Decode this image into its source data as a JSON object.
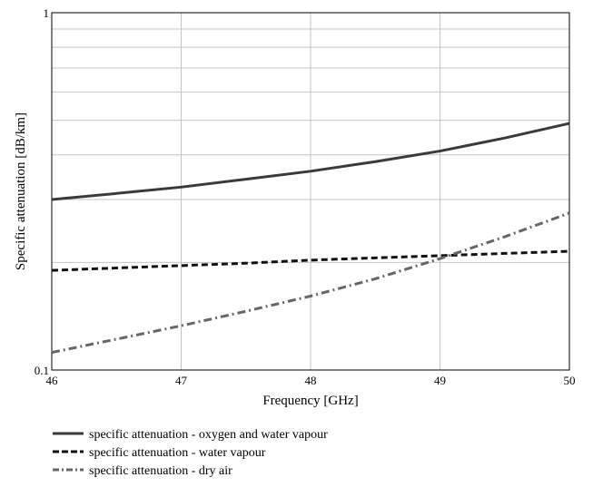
{
  "chart_data": {
    "type": "line",
    "xlabel": "Frequency [GHz]",
    "ylabel": "Specific attenuation [dB/km]",
    "xlim": [
      46,
      50
    ],
    "ylim": [
      0.1,
      1
    ],
    "y_scale": "log",
    "grid": true,
    "legend_position": "bottom-left",
    "x_ticks": [
      "46",
      "47",
      "48",
      "49",
      "50"
    ],
    "y_ticks": [
      "0.1",
      "1"
    ],
    "series": [
      {
        "name": "specific attenuation - oxygen and water vapour",
        "style": "solid",
        "color": "#3a3a3a",
        "x": [
          46,
          46.5,
          47,
          47.5,
          48,
          48.5,
          49,
          49.5,
          50
        ],
        "y": [
          0.3,
          0.312,
          0.325,
          0.342,
          0.36,
          0.383,
          0.41,
          0.446,
          0.49
        ]
      },
      {
        "name": "specific attenuation - water vapour",
        "style": "dashed",
        "color": "#111111",
        "x": [
          46,
          46.5,
          47,
          47.5,
          48,
          48.5,
          49,
          49.5,
          50
        ],
        "y": [
          0.19,
          0.193,
          0.196,
          0.199,
          0.203,
          0.206,
          0.209,
          0.212,
          0.215
        ]
      },
      {
        "name": "specific attenuation - dry air",
        "style": "dash-dot",
        "color": "#666666",
        "x": [
          46,
          46.5,
          47,
          47.5,
          48,
          48.5,
          49,
          49.5,
          50
        ],
        "y": [
          0.112,
          0.122,
          0.133,
          0.146,
          0.161,
          0.18,
          0.205,
          0.236,
          0.275
        ]
      }
    ]
  }
}
